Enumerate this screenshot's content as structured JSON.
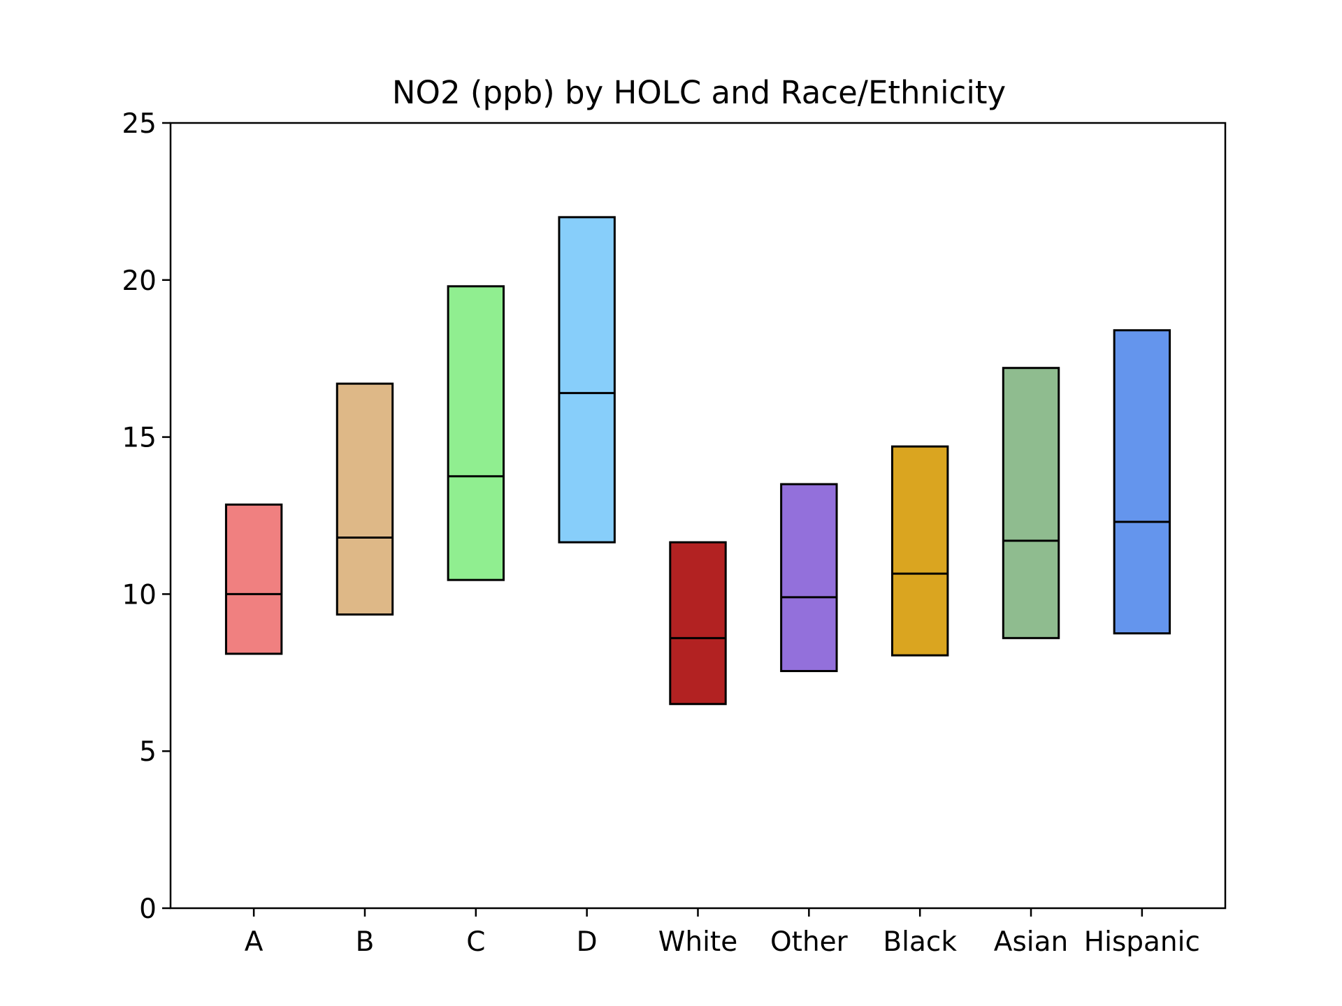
{
  "chart_data": {
    "type": "box",
    "title": "NO2 (ppb) by HOLC and Race/Ethnicity",
    "xlabel": "",
    "ylabel": "",
    "ylim": [
      0,
      25
    ],
    "yticks": [
      0,
      5,
      10,
      15,
      20,
      25
    ],
    "grid": false,
    "categories": [
      "A",
      "B",
      "C",
      "D",
      "White",
      "Other",
      "Black",
      "Asian",
      "Hispanic"
    ],
    "boxes": [
      {
        "category": "A",
        "q1": 8.1,
        "median": 10.0,
        "q3": 12.85,
        "color": "#f08080"
      },
      {
        "category": "B",
        "q1": 9.35,
        "median": 11.8,
        "q3": 16.7,
        "color": "#deb887"
      },
      {
        "category": "C",
        "q1": 10.45,
        "median": 13.75,
        "q3": 19.8,
        "color": "#90ee90"
      },
      {
        "category": "D",
        "q1": 11.65,
        "median": 16.4,
        "q3": 22.0,
        "color": "#87cefa"
      },
      {
        "category": "White",
        "q1": 6.5,
        "median": 8.6,
        "q3": 11.65,
        "color": "#b22222"
      },
      {
        "category": "Other",
        "q1": 7.55,
        "median": 9.9,
        "q3": 13.5,
        "color": "#9370db"
      },
      {
        "category": "Black",
        "q1": 8.05,
        "median": 10.65,
        "q3": 14.7,
        "color": "#daa520"
      },
      {
        "category": "Asian",
        "q1": 8.6,
        "median": 11.7,
        "q3": 17.2,
        "color": "#8fbc8f"
      },
      {
        "category": "Hispanic",
        "q1": 8.75,
        "median": 12.3,
        "q3": 18.4,
        "color": "#6495ed"
      }
    ]
  }
}
